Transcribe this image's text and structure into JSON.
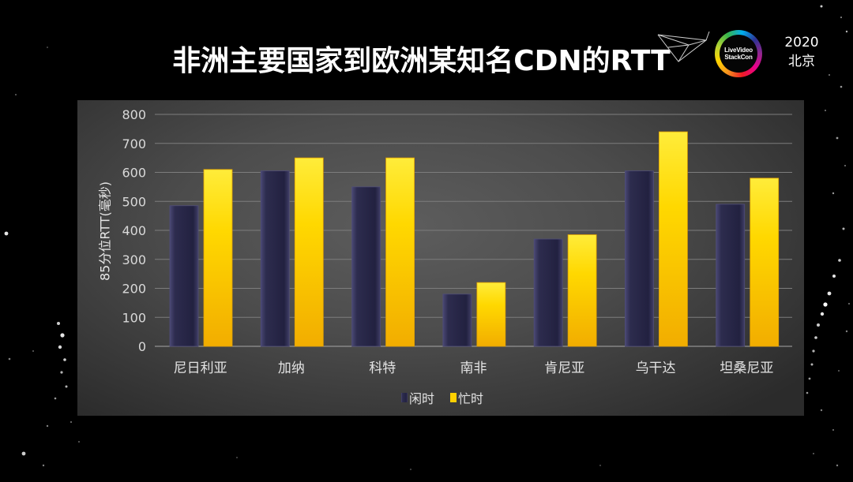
{
  "slide": {
    "title": "非洲主要国家到欧洲某知名CDN的RTT",
    "logo": {
      "line1": "LiveVideo",
      "line2": "StackCon"
    },
    "year": "2020",
    "city": "北京",
    "colors": {
      "background": "#000000",
      "text": "#ffffff",
      "panel": "#4b4b4b"
    }
  },
  "chart_data": {
    "type": "bar",
    "ylabel": "85分位RTT(毫秒)",
    "categories": [
      "尼日利亚",
      "加纳",
      "科特",
      "南非",
      "肯尼亚",
      "乌干达",
      "坦桑尼亚"
    ],
    "ylim": [
      0,
      800
    ],
    "yticks": [
      0,
      100,
      200,
      300,
      400,
      500,
      600,
      700,
      800
    ],
    "grid": true,
    "legend_position": "bottom",
    "series": [
      {
        "name": "闲时",
        "color": "#2a2947",
        "values": [
          485,
          605,
          550,
          180,
          370,
          605,
          490
        ]
      },
      {
        "name": "忙时",
        "color": "#ffd000",
        "values": [
          610,
          650,
          650,
          220,
          385,
          740,
          580
        ]
      }
    ]
  }
}
